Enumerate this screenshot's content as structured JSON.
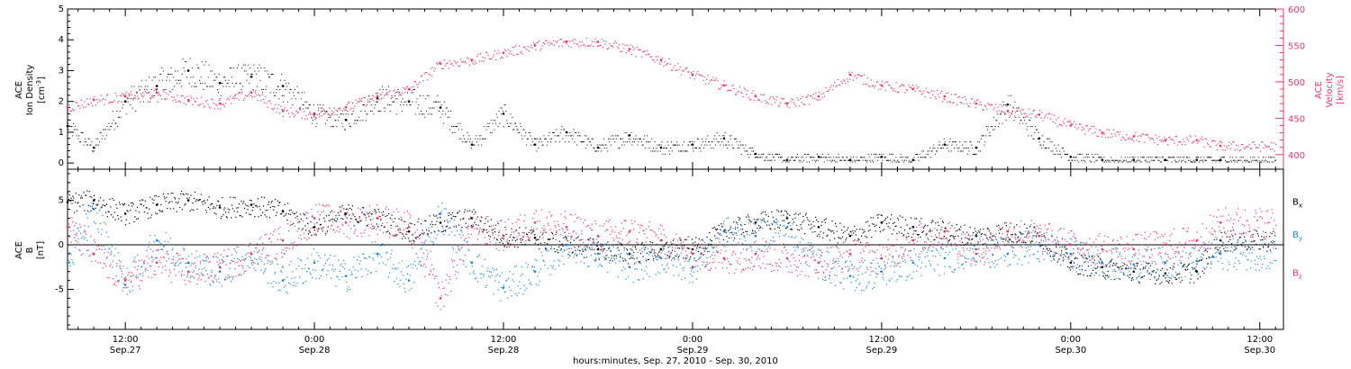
{
  "colors": {
    "black": "#000000",
    "pink": "#e8386a",
    "blue": "#1f86d8"
  },
  "xaxis": {
    "ticks": [
      {
        "t": 12,
        "time": "12:00",
        "date": "Sep.27"
      },
      {
        "t": 24,
        "time": "0:00",
        "date": "Sep.28"
      },
      {
        "t": 36,
        "time": "12:00",
        "date": "Sep.28"
      },
      {
        "t": 48,
        "time": "0:00",
        "date": "Sep.29"
      },
      {
        "t": 60,
        "time": "12:00",
        "date": "Sep.29"
      },
      {
        "t": 72,
        "time": "0:00",
        "date": "Sep.30"
      },
      {
        "t": 84,
        "time": "12:00",
        "date": "Sep.30"
      }
    ],
    "title": "hours:minutes, Sep. 27, 2010 - Sep. 30, 2010",
    "range": [
      "2010-09-27 08:20",
      "2010-09-30 13:30"
    ]
  },
  "chart_data": [
    {
      "type": "scatter",
      "panel": "top",
      "ylabel_left": [
        "ACE",
        "Ion Density"
      ],
      "yunit_left_base": "[cm",
      "yunit_left_sup": "-3",
      "yunit_left_end": "]",
      "ylabel_right": [
        "ACE",
        "Velocity",
        "[km/s]"
      ],
      "ylim_left": [
        -0.2,
        5.0
      ],
      "yticks_left": [
        "0",
        "1",
        "2",
        "3",
        "4",
        "5"
      ],
      "ylim_right": [
        380,
        600
      ],
      "yticks_right": [
        "400",
        "450",
        "500",
        "550",
        "600"
      ],
      "series": [
        {
          "axis": "left",
          "color": "black",
          "x": [
            "Sep.27 08:20",
            "Sep.27 10:00",
            "Sep.27 12:00",
            "Sep.27 14:00",
            "Sep.27 16:00",
            "Sep.27 18:00",
            "Sep.27 20:00",
            "Sep.27 22:00",
            "Sep.28 00:00",
            "Sep.28 02:00",
            "Sep.28 04:00",
            "Sep.28 06:00",
            "Sep.28 08:00",
            "Sep.28 10:00",
            "Sep.28 12:00",
            "Sep.28 14:00",
            "Sep.28 16:00",
            "Sep.28 18:00",
            "Sep.28 20:00",
            "Sep.28 22:00",
            "Sep.29 00:00",
            "Sep.29 02:00",
            "Sep.29 04:00",
            "Sep.29 06:00",
            "Sep.29 08:00",
            "Sep.29 10:00",
            "Sep.29 12:00",
            "Sep.29 14:00",
            "Sep.29 16:00",
            "Sep.29 18:00",
            "Sep.29 20:00",
            "Sep.29 22:00",
            "Sep.30 00:00",
            "Sep.30 02:00",
            "Sep.30 04:00",
            "Sep.30 06:00",
            "Sep.30 08:00",
            "Sep.30 09:30"
          ],
          "values": [
            1.2,
            0.5,
            2.0,
            2.5,
            3.0,
            2.6,
            2.8,
            2.5,
            1.6,
            1.4,
            2.1,
            2.0,
            1.8,
            0.6,
            1.6,
            0.6,
            1.0,
            0.5,
            0.9,
            0.5,
            0.6,
            0.8,
            0.3,
            0.1,
            0.2,
            0.1,
            0.2,
            0.1,
            0.6,
            0.5,
            1.9,
            0.8,
            0.2,
            0.1,
            0.1,
            0.1,
            0.1,
            0.1
          ]
        },
        {
          "axis": "right",
          "color": "pink",
          "x": [
            "Sep.27 08:20",
            "Sep.27 10:00",
            "Sep.27 12:00",
            "Sep.27 14:00",
            "Sep.27 16:00",
            "Sep.27 18:00",
            "Sep.27 20:00",
            "Sep.27 22:00",
            "Sep.28 00:00",
            "Sep.28 02:00",
            "Sep.28 04:00",
            "Sep.28 06:00",
            "Sep.28 08:00",
            "Sep.28 10:00",
            "Sep.28 12:00",
            "Sep.28 14:00",
            "Sep.28 16:00",
            "Sep.28 18:00",
            "Sep.28 20:00",
            "Sep.28 22:00",
            "Sep.29 00:00",
            "Sep.29 02:00",
            "Sep.29 04:00",
            "Sep.29 06:00",
            "Sep.29 08:00",
            "Sep.29 10:00",
            "Sep.29 12:00",
            "Sep.29 14:00",
            "Sep.29 16:00",
            "Sep.29 18:00",
            "Sep.29 20:00",
            "Sep.29 22:00",
            "Sep.30 00:00",
            "Sep.30 02:00",
            "Sep.30 04:00",
            "Sep.30 06:00",
            "Sep.30 08:00",
            "Sep.30 09:30"
          ],
          "values": [
            465,
            475,
            480,
            485,
            475,
            470,
            485,
            460,
            455,
            465,
            480,
            490,
            525,
            530,
            540,
            550,
            555,
            555,
            545,
            530,
            510,
            495,
            480,
            470,
            480,
            510,
            495,
            490,
            480,
            470,
            460,
            455,
            440,
            430,
            425,
            420,
            420,
            412
          ]
        }
      ]
    },
    {
      "type": "scatter",
      "panel": "bottom",
      "ylabel_left": [
        "ACE",
        "B",
        "[nT]"
      ],
      "ylim": [
        -9.5,
        8.5
      ],
      "yticks": [
        "-5",
        "0",
        "5"
      ],
      "zero_line": true,
      "legend": [
        {
          "base": "B",
          "sub": "x",
          "color": "black"
        },
        {
          "base": "B",
          "sub": "y",
          "color": "blue"
        },
        {
          "base": "B",
          "sub": "z",
          "color": "pink"
        }
      ],
      "legend_placement": "right",
      "series": [
        {
          "name": "Bx",
          "color": "black",
          "x": [
            "Sep.27 08:20",
            "Sep.27 10:00",
            "Sep.27 12:00",
            "Sep.27 14:00",
            "Sep.27 16:00",
            "Sep.27 18:00",
            "Sep.27 20:00",
            "Sep.27 22:00",
            "Sep.28 00:00",
            "Sep.28 02:00",
            "Sep.28 04:00",
            "Sep.28 06:00",
            "Sep.28 08:00",
            "Sep.28 10:00",
            "Sep.28 12:00",
            "Sep.28 14:00",
            "Sep.28 16:00",
            "Sep.28 18:00",
            "Sep.28 20:00",
            "Sep.28 22:00",
            "Sep.29 00:00",
            "Sep.29 02:00",
            "Sep.29 04:00",
            "Sep.29 06:00",
            "Sep.29 08:00",
            "Sep.29 10:00",
            "Sep.29 12:00",
            "Sep.29 14:00",
            "Sep.29 16:00",
            "Sep.29 18:00",
            "Sep.29 20:00",
            "Sep.29 22:00",
            "Sep.30 00:00",
            "Sep.30 02:00",
            "Sep.30 04:00",
            "Sep.30 06:00",
            "Sep.30 08:00",
            "Sep.30 09:30"
          ],
          "values": [
            4.8,
            5.0,
            3.5,
            4.5,
            5.0,
            4.2,
            4.5,
            3.8,
            2.0,
            3.5,
            3.0,
            1.5,
            2.5,
            3.0,
            1.0,
            0.8,
            0.0,
            -0.5,
            -1.0,
            -0.5,
            -0.5,
            1.5,
            2.5,
            3.0,
            2.0,
            1.0,
            2.5,
            2.0,
            1.5,
            1.0,
            1.5,
            1.0,
            -2.0,
            -2.5,
            -3.0,
            -3.2,
            -3.0,
            0.5
          ]
        },
        {
          "name": "By",
          "color": "blue",
          "x": [
            "Sep.27 08:20",
            "Sep.27 10:00",
            "Sep.27 12:00",
            "Sep.27 14:00",
            "Sep.27 16:00",
            "Sep.27 18:00",
            "Sep.27 20:00",
            "Sep.27 22:00",
            "Sep.28 00:00",
            "Sep.28 02:00",
            "Sep.28 04:00",
            "Sep.28 06:00",
            "Sep.28 08:00",
            "Sep.28 10:00",
            "Sep.28 12:00",
            "Sep.28 14:00",
            "Sep.28 16:00",
            "Sep.28 18:00",
            "Sep.28 20:00",
            "Sep.28 22:00",
            "Sep.29 00:00",
            "Sep.29 02:00",
            "Sep.29 04:00",
            "Sep.29 06:00",
            "Sep.29 08:00",
            "Sep.29 10:00",
            "Sep.29 12:00",
            "Sep.29 14:00",
            "Sep.29 16:00",
            "Sep.29 18:00",
            "Sep.29 20:00",
            "Sep.29 22:00",
            "Sep.30 00:00",
            "Sep.30 02:00",
            "Sep.30 04:00",
            "Sep.30 06:00",
            "Sep.30 08:00",
            "Sep.30 09:30"
          ],
          "values": [
            -2.0,
            4.0,
            -4.5,
            0.5,
            -2.0,
            -3.0,
            -1.0,
            -4.0,
            -2.0,
            -3.5,
            -1.0,
            -4.0,
            3.5,
            -2.0,
            -4.8,
            -3.0,
            0.0,
            -1.0,
            -2.5,
            -1.5,
            -2.5,
            1.5,
            1.0,
            2.0,
            -2.0,
            -3.5,
            -3.0,
            -2.0,
            -1.5,
            -0.5,
            -1.0,
            0.0,
            -1.0,
            -2.0,
            -2.2,
            -2.0,
            -1.8,
            -1.0
          ]
        },
        {
          "name": "Bz",
          "color": "pink",
          "x": [
            "Sep.27 08:20",
            "Sep.27 10:00",
            "Sep.27 12:00",
            "Sep.27 14:00",
            "Sep.27 16:00",
            "Sep.27 18:00",
            "Sep.27 20:00",
            "Sep.27 22:00",
            "Sep.28 00:00",
            "Sep.28 02:00",
            "Sep.28 04:00",
            "Sep.28 06:00",
            "Sep.28 08:00",
            "Sep.28 10:00",
            "Sep.28 12:00",
            "Sep.28 14:00",
            "Sep.28 16:00",
            "Sep.28 18:00",
            "Sep.28 20:00",
            "Sep.28 22:00",
            "Sep.29 00:00",
            "Sep.29 02:00",
            "Sep.29 04:00",
            "Sep.29 06:00",
            "Sep.29 08:00",
            "Sep.29 10:00",
            "Sep.29 12:00",
            "Sep.29 14:00",
            "Sep.29 16:00",
            "Sep.29 18:00",
            "Sep.29 20:00",
            "Sep.29 22:00",
            "Sep.30 00:00",
            "Sep.30 02:00",
            "Sep.30 04:00",
            "Sep.30 06:00",
            "Sep.30 08:00",
            "Sep.30 09:30"
          ],
          "values": [
            2.0,
            -1.0,
            -4.0,
            -2.0,
            -3.0,
            -2.5,
            -1.0,
            0.5,
            3.0,
            2.5,
            3.0,
            2.0,
            -6.0,
            2.0,
            1.0,
            2.5,
            2.0,
            1.0,
            1.5,
            0.5,
            -1.0,
            -1.5,
            -1.0,
            -1.5,
            -2.0,
            -1.0,
            -1.5,
            0.5,
            1.5,
            -1.0,
            1.5,
            1.0,
            0.0,
            -0.5,
            -0.5,
            0.0,
            0.5,
            2.5
          ]
        }
      ]
    }
  ]
}
